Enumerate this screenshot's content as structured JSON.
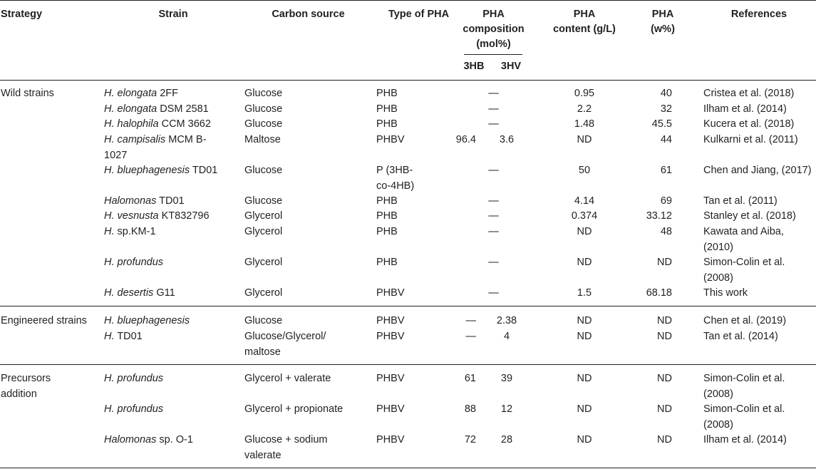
{
  "headers": {
    "strategy": "Strategy",
    "strain": "Strain",
    "carbon": "Carbon source",
    "type": "Type of PHA",
    "composition_l1": "PHA",
    "composition_l2": "composition",
    "composition_l3": "(mol%)",
    "sub_3hb": "3HB",
    "sub_3hv": "3HV",
    "content_l1": "PHA",
    "content_l2": "content (g/L)",
    "w_l1": "PHA",
    "w_l2": "(w%)",
    "refs": "References"
  },
  "groups": [
    {
      "strategy": [
        "Wild strains"
      ],
      "rows": [
        {
          "strain_italic": "H. elongata",
          "strain_rest": " 2FF",
          "carbon": [
            "Glucose"
          ],
          "type": [
            "PHB"
          ],
          "hb": "",
          "hv": "",
          "merged": "—",
          "content": "0.95",
          "w": "40",
          "ref": [
            "Cristea et al. (2018)"
          ]
        },
        {
          "strain_italic": "H. elongata",
          "strain_rest": " DSM 2581",
          "carbon": [
            "Glucose"
          ],
          "type": [
            "PHB"
          ],
          "hb": "",
          "hv": "",
          "merged": "—",
          "content": "2.2",
          "w": "32",
          "ref": [
            "Ilham et al. (2014)"
          ]
        },
        {
          "strain_italic": "H. halophila",
          "strain_rest": " CCM 3662",
          "carbon": [
            "Glucose"
          ],
          "type": [
            "PHB"
          ],
          "hb": "",
          "hv": "",
          "merged": "—",
          "content": "1.48",
          "w": "45.5",
          "ref": [
            "Kucera et al. (2018)"
          ]
        },
        {
          "strain_italic": "H. campisalis",
          "strain_rest": " MCM B-",
          "strain_l2": "1027",
          "carbon": [
            "Maltose"
          ],
          "type": [
            "PHBV"
          ],
          "hb": "96.4",
          "hv": "3.6",
          "merged": "",
          "content": "ND",
          "w": "44",
          "ref": [
            "Kulkarni et al. (2011)"
          ]
        },
        {
          "strain_italic": "H. bluephagenesis",
          "strain_rest": " TD01",
          "carbon": [
            "Glucose"
          ],
          "type": [
            "P (3HB-",
            "co-4HB)"
          ],
          "hb": "",
          "hv": "",
          "merged": "—",
          "content": "50",
          "w": "61",
          "ref": [
            "Chen and Jiang, (2017)"
          ]
        },
        {
          "strain_italic": "Halomonas",
          "strain_rest": " TD01",
          "carbon": [
            "Glucose"
          ],
          "type": [
            "PHB"
          ],
          "hb": "",
          "hv": "",
          "merged": "—",
          "content": "4.14",
          "w": "69",
          "ref": [
            "Tan et al. (2011)"
          ]
        },
        {
          "strain_italic": "H. vesnusta",
          "strain_rest": " KT832796",
          "carbon": [
            "Glycerol"
          ],
          "type": [
            "PHB"
          ],
          "hb": "",
          "hv": "",
          "merged": "—",
          "content": "0.374",
          "w": "33.12",
          "ref": [
            "Stanley et al. (2018)"
          ]
        },
        {
          "strain_italic": "H.",
          "strain_rest": " sp.KM-1",
          "carbon": [
            "Glycerol"
          ],
          "type": [
            "PHB"
          ],
          "hb": "",
          "hv": "",
          "merged": "—",
          "content": "ND",
          "w": "48",
          "ref": [
            "Kawata and Aiba,",
            "(2010)"
          ]
        },
        {
          "strain_italic": "H. profundus",
          "strain_rest": "",
          "carbon": [
            "Glycerol"
          ],
          "type": [
            "PHB"
          ],
          "hb": "",
          "hv": "",
          "merged": "—",
          "content": "ND",
          "w": "ND",
          "ref": [
            "Simon-Colin et al.",
            "(2008)"
          ]
        },
        {
          "strain_italic": "H. desertis",
          "strain_rest": " G11",
          "carbon": [
            "Glycerol"
          ],
          "type": [
            "PHBV"
          ],
          "hb": "",
          "hv": "",
          "merged": "—",
          "content": "1.5",
          "w": "68.18",
          "ref": [
            "This work"
          ]
        }
      ]
    },
    {
      "strategy": [
        "Engineered strains"
      ],
      "rows": [
        {
          "strain_italic": "H. bluephagenesis",
          "strain_rest": "",
          "carbon": [
            "Glucose"
          ],
          "type": [
            "PHBV"
          ],
          "hb": "—",
          "hv": "2.38",
          "merged": "",
          "content": "ND",
          "w": "ND",
          "ref": [
            "Chen et al. (2019)"
          ]
        },
        {
          "strain_italic": "H.",
          "strain_rest": " TD01",
          "carbon": [
            "Glucose/Glycerol/",
            "maltose"
          ],
          "type": [
            "PHBV"
          ],
          "hb": "—",
          "hv": "4",
          "merged": "",
          "content": "ND",
          "w": "ND",
          "ref": [
            "Tan et al. (2014)"
          ]
        }
      ]
    },
    {
      "strategy": [
        "Precursors",
        "addition"
      ],
      "rows": [
        {
          "strain_italic": "H. profundus",
          "strain_rest": "",
          "carbon": [
            "Glycerol + valerate"
          ],
          "type": [
            "PHBV"
          ],
          "hb": "61",
          "hv": "39",
          "merged": "",
          "content": "ND",
          "w": "ND",
          "ref": [
            "Simon-Colin et al.",
            "(2008)"
          ]
        },
        {
          "strain_italic": "H. profundus",
          "strain_rest": "",
          "carbon": [
            "Glycerol + propionate"
          ],
          "type": [
            "PHBV"
          ],
          "hb": "88",
          "hv": "12",
          "merged": "",
          "content": "ND",
          "w": "ND",
          "ref": [
            "Simon-Colin et al.",
            "(2008)"
          ]
        },
        {
          "strain_italic": "Halomonas",
          "strain_rest": " sp. O-1",
          "carbon": [
            "Glucose + sodium",
            "valerate"
          ],
          "type": [
            "PHBV"
          ],
          "hb": "72",
          "hv": "28",
          "merged": "",
          "content": "ND",
          "w": "ND",
          "ref": [
            "Ilham et al. (2014)"
          ]
        }
      ]
    }
  ]
}
